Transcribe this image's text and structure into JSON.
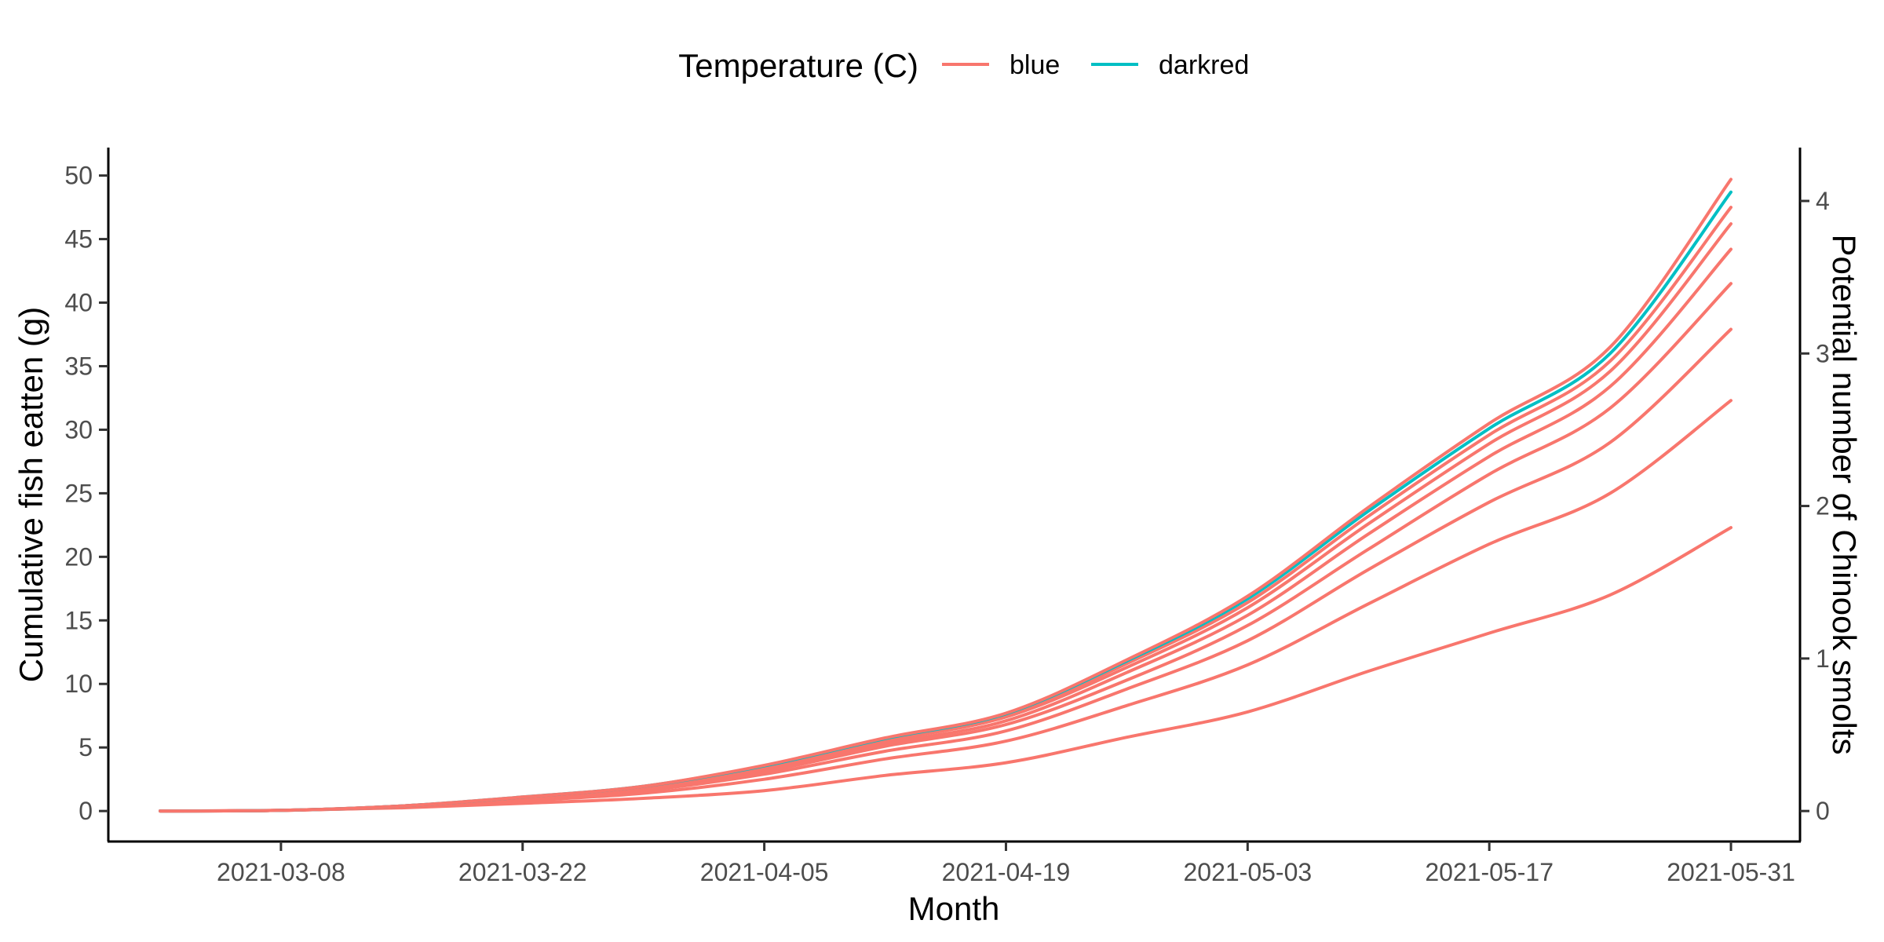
{
  "chart_data": {
    "type": "line",
    "title": "",
    "xlabel": "Month",
    "ylabel": "Cumulative fish eatten (g)",
    "y2label": "Potential number of Chinook smolts",
    "legend": {
      "title": "Temperature (C)",
      "placement": "top",
      "entries": [
        {
          "label": "blue",
          "color": "#F8766D"
        },
        {
          "label": "darkred",
          "color": "#00BFC4"
        }
      ]
    },
    "grid": false,
    "xlim": [
      "2021-02-26",
      "2021-06-04"
    ],
    "ylim": [
      -2.4,
      52.2
    ],
    "y2lim": [
      -0.2,
      4.35
    ],
    "x_ticks": [
      "2021-03-08",
      "2021-03-22",
      "2021-04-05",
      "2021-04-19",
      "2021-05-03",
      "2021-05-17",
      "2021-05-31"
    ],
    "y_ticks": [
      0,
      5,
      10,
      15,
      20,
      25,
      30,
      35,
      40,
      45,
      50
    ],
    "y2_ticks": [
      0,
      1,
      2,
      3,
      4
    ],
    "x_dates": [
      "2021-03-01",
      "2021-03-08",
      "2021-03-15",
      "2021-03-22",
      "2021-03-29",
      "2021-04-05",
      "2021-04-12",
      "2021-04-19",
      "2021-04-26",
      "2021-05-03",
      "2021-05-10",
      "2021-05-17",
      "2021-05-24",
      "2021-05-31"
    ],
    "series": [
      {
        "color": "#F8766D",
        "values": [
          0,
          0.05,
          0.25,
          0.6,
          1.0,
          1.6,
          2.8,
          3.8,
          5.8,
          7.8,
          11.0,
          14.0,
          17.0,
          22.3
        ]
      },
      {
        "color": "#F8766D",
        "values": [
          0,
          0.05,
          0.3,
          0.8,
          1.4,
          2.5,
          4.1,
          5.5,
          8.3,
          11.5,
          16.3,
          21.0,
          25.0,
          32.3
        ]
      },
      {
        "color": "#F8766D",
        "values": [
          0,
          0.05,
          0.35,
          0.9,
          1.6,
          2.9,
          4.7,
          6.3,
          9.6,
          13.4,
          19.0,
          24.3,
          29.0,
          37.9
        ]
      },
      {
        "color": "#F8766D",
        "values": [
          0,
          0.05,
          0.35,
          0.95,
          1.7,
          3.1,
          5.1,
          6.8,
          10.3,
          14.6,
          20.6,
          26.5,
          31.7,
          41.5
        ]
      },
      {
        "color": "#F8766D",
        "values": [
          0,
          0.05,
          0.4,
          1.0,
          1.8,
          3.3,
          5.3,
          7.1,
          10.9,
          15.4,
          21.8,
          27.9,
          33.4,
          44.2
        ]
      },
      {
        "color": "#F8766D",
        "values": [
          0,
          0.05,
          0.4,
          1.05,
          1.85,
          3.4,
          5.5,
          7.4,
          11.3,
          16.0,
          22.6,
          28.9,
          34.6,
          46.2
        ]
      },
      {
        "color": "#F8766D",
        "values": [
          0,
          0.05,
          0.4,
          1.05,
          1.9,
          3.5,
          5.6,
          7.5,
          11.6,
          16.4,
          23.2,
          29.6,
          35.4,
          47.5
        ]
      },
      {
        "color": "#00BFC4",
        "values": [
          0,
          0.05,
          0.4,
          1.1,
          1.95,
          3.55,
          5.7,
          7.65,
          11.8,
          16.7,
          23.6,
          30.1,
          36.0,
          48.7
        ]
      },
      {
        "color": "#F8766D",
        "values": [
          0,
          0.05,
          0.4,
          1.1,
          1.95,
          3.6,
          5.75,
          7.7,
          11.9,
          16.9,
          23.9,
          30.5,
          36.5,
          49.7
        ]
      }
    ]
  }
}
